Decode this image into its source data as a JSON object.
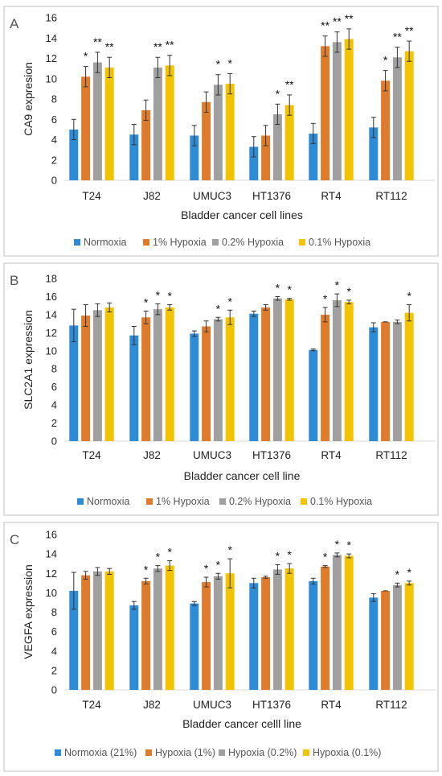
{
  "colors": [
    "#2e8bd6",
    "#e07b2b",
    "#a0a0a0",
    "#f2c300"
  ],
  "chart_data": [
    {
      "type": "bar",
      "letter": "A",
      "ylabel": "CA9 expresion",
      "xlabel": "Bladder cancer cell lines",
      "ylim": [
        0,
        16
      ],
      "yticks": [
        0,
        2,
        4,
        6,
        8,
        10,
        12,
        14,
        16
      ],
      "categories": [
        "T24",
        "J82",
        "UMUC3",
        "HT1376",
        "RT4",
        "RT112"
      ],
      "series": [
        {
          "name": "Normoxia",
          "values": [
            5.0,
            4.5,
            4.4,
            3.3,
            4.6,
            5.2
          ],
          "errors": [
            1.0,
            1.0,
            1.0,
            1.0,
            1.0,
            1.0
          ]
        },
        {
          "name": "1% Hypoxia",
          "values": [
            10.2,
            6.9,
            7.7,
            4.4,
            13.2,
            9.8
          ],
          "errors": [
            1.0,
            1.0,
            1.0,
            1.0,
            1.0,
            1.0
          ]
        },
        {
          "name": "0.2% Hypoxia",
          "values": [
            11.6,
            11.1,
            9.4,
            6.5,
            13.6,
            12.1
          ],
          "errors": [
            1.0,
            1.0,
            1.0,
            1.0,
            1.0,
            1.0
          ]
        },
        {
          "name": "0.1% Hypoxia",
          "values": [
            11.1,
            11.3,
            9.5,
            7.4,
            13.9,
            12.7
          ],
          "errors": [
            1.0,
            1.0,
            1.0,
            1.0,
            1.0,
            1.0
          ]
        }
      ],
      "significance": [
        [
          "",
          "*",
          "**",
          "**"
        ],
        [
          "",
          "",
          "**",
          "**"
        ],
        [
          "",
          "",
          "*",
          "*"
        ],
        [
          "",
          "",
          "*",
          "**"
        ],
        [
          "",
          "**",
          "**",
          "**"
        ],
        [
          "",
          "*",
          "**",
          "**"
        ]
      ]
    },
    {
      "type": "bar",
      "letter": "B",
      "ylabel": "SLC2A1 expression",
      "xlabel": "Bladder cancer cell line",
      "ylim": [
        0,
        18
      ],
      "yticks": [
        0,
        2,
        4,
        6,
        8,
        10,
        12,
        14,
        16,
        18
      ],
      "categories": [
        "T24",
        "J82",
        "UMUC3",
        "HT1376",
        "RT4",
        "RT112"
      ],
      "series": [
        {
          "name": "Normoxia",
          "values": [
            12.8,
            11.7,
            11.9,
            14.1,
            10.1,
            12.6
          ],
          "errors": [
            1.8,
            1.0,
            0.3,
            0.3,
            0.1,
            0.5
          ]
        },
        {
          "name": "1% Hypoxia",
          "values": [
            13.9,
            13.7,
            12.7,
            14.8,
            14.0,
            13.2
          ],
          "errors": [
            1.2,
            0.7,
            0.6,
            0.3,
            0.8,
            0.0
          ]
        },
        {
          "name": "0.2% Hypoxia",
          "values": [
            14.5,
            14.6,
            13.5,
            15.8,
            15.6,
            13.2
          ],
          "errors": [
            0.7,
            0.6,
            0.2,
            0.2,
            0.7,
            0.2
          ]
        },
        {
          "name": "0.1% Hypoxia",
          "values": [
            14.8,
            14.8,
            13.7,
            15.7,
            15.4,
            14.2
          ],
          "errors": [
            0.5,
            0.3,
            0.8,
            0.1,
            0.2,
            0.9
          ]
        }
      ],
      "significance": [
        [
          "",
          "",
          "",
          ""
        ],
        [
          "",
          "*",
          "*",
          "*"
        ],
        [
          "",
          "",
          "*",
          "*"
        ],
        [
          "",
          "",
          "*",
          "*"
        ],
        [
          "",
          "*",
          "*",
          "*"
        ],
        [
          "",
          "",
          "",
          "*"
        ]
      ]
    },
    {
      "type": "bar",
      "letter": "C",
      "ylabel": "VEGFA expression",
      "xlabel": "Bladder cancer celll line",
      "ylim": [
        0,
        16
      ],
      "yticks": [
        0,
        2,
        4,
        6,
        8,
        10,
        12,
        14,
        16
      ],
      "categories": [
        "T24",
        "J82",
        "UMUC3",
        "HT1376",
        "RT4",
        "RT112"
      ],
      "series": [
        {
          "name": "Normoxia (21%)",
          "values": [
            10.2,
            8.7,
            8.9,
            11.0,
            11.2,
            9.5
          ],
          "errors": [
            1.9,
            0.4,
            0.2,
            0.5,
            0.3,
            0.4
          ]
        },
        {
          "name": "Hypoxia (1%)",
          "values": [
            11.8,
            11.2,
            11.1,
            11.6,
            12.7,
            10.2
          ],
          "errors": [
            0.4,
            0.3,
            0.5,
            0.1,
            0.1,
            0.0
          ]
        },
        {
          "name": "Hypoxia (0.2%)",
          "values": [
            12.2,
            12.5,
            11.7,
            12.4,
            13.9,
            10.8
          ],
          "errors": [
            0.4,
            0.3,
            0.3,
            0.5,
            0.2,
            0.2
          ]
        },
        {
          "name": "Hypoxia (0.1%)",
          "values": [
            12.2,
            12.8,
            12.0,
            12.5,
            13.8,
            11.0
          ],
          "errors": [
            0.3,
            0.5,
            1.5,
            0.5,
            0.2,
            0.2
          ]
        }
      ],
      "significance": [
        [
          "",
          "",
          "",
          ""
        ],
        [
          "",
          "*",
          "*",
          "*"
        ],
        [
          "",
          "*",
          "*",
          "*"
        ],
        [
          "",
          "",
          "*",
          "*"
        ],
        [
          "",
          "*",
          "*",
          "*"
        ],
        [
          "",
          "",
          "*",
          "*"
        ]
      ]
    }
  ]
}
